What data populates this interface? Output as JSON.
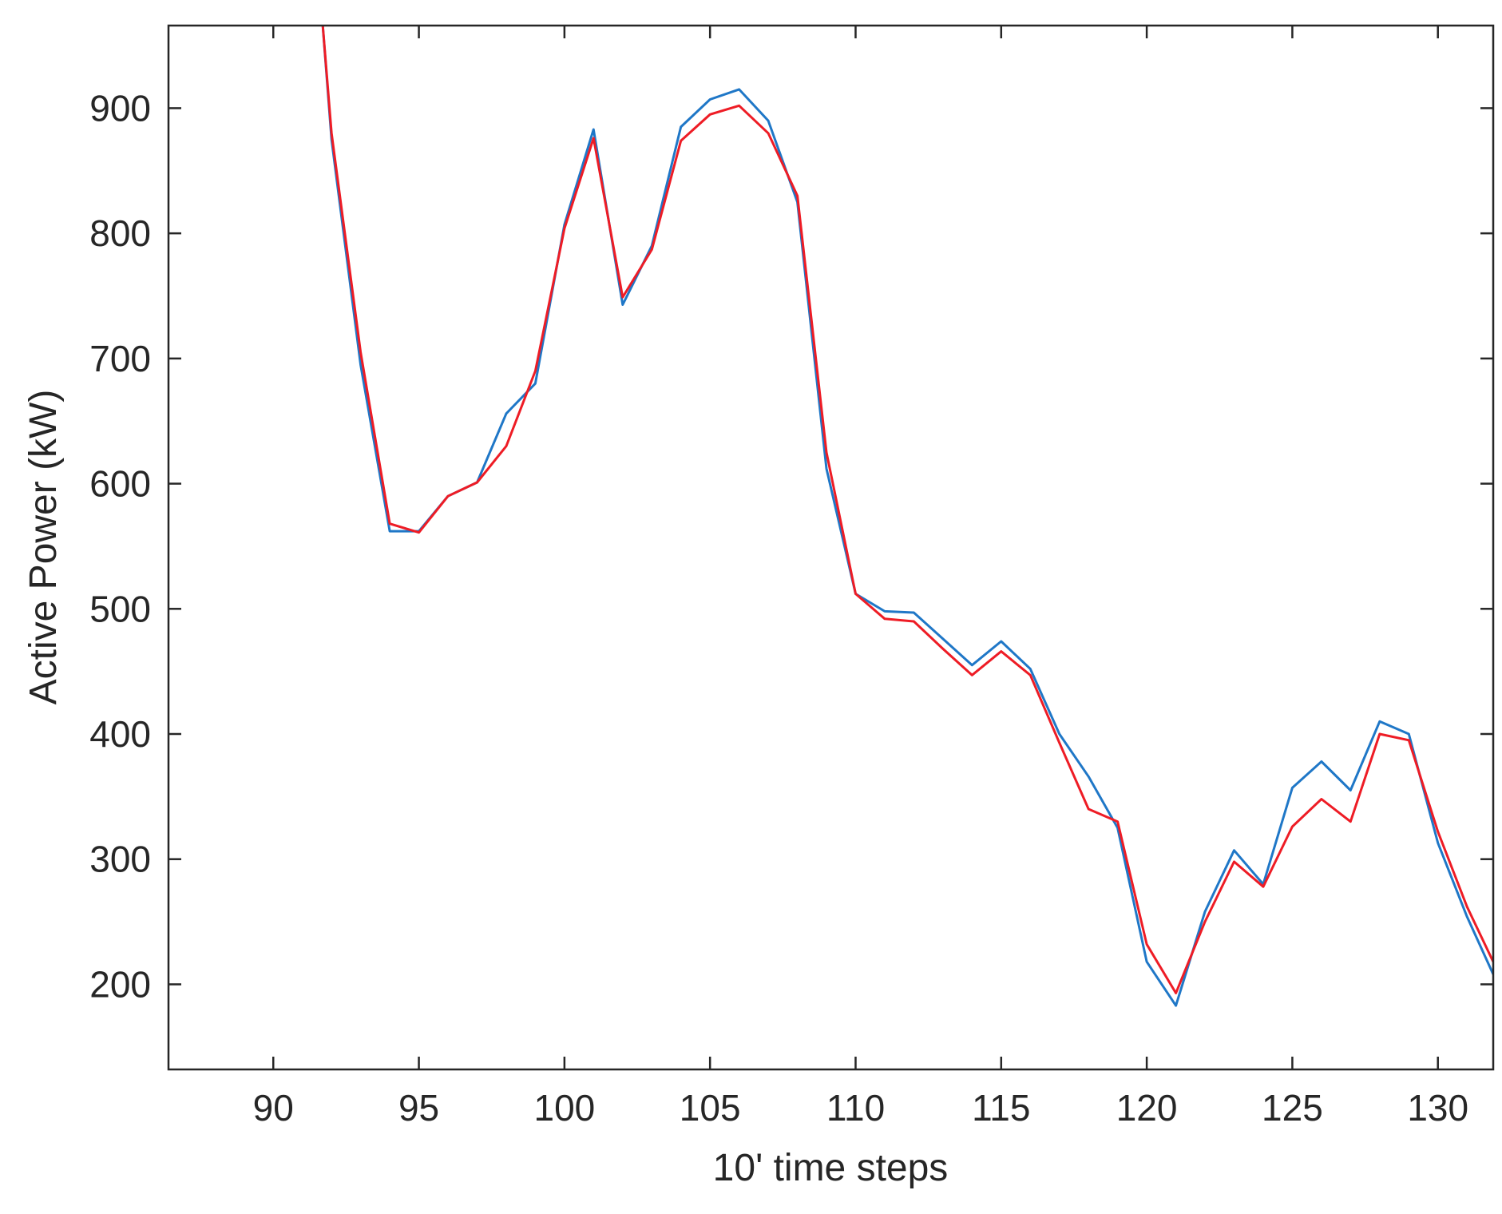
{
  "chart_data": {
    "type": "line",
    "xlabel": "10' time steps",
    "ylabel": "Active Power (kW)",
    "xlim": [
      86.4,
      131.9
    ],
    "ylim": [
      132,
      966
    ],
    "xticks": [
      90,
      95,
      100,
      105,
      110,
      115,
      120,
      125,
      130
    ],
    "yticks": [
      200,
      300,
      400,
      500,
      600,
      700,
      800,
      900
    ],
    "grid": false,
    "legend": null,
    "series": [
      {
        "color": "#1f77c7",
        "x": [
          91.7,
          92,
          93,
          94,
          95,
          96,
          97,
          98,
          99,
          100,
          101,
          102,
          103,
          104,
          105,
          106,
          107,
          108,
          109,
          110,
          111,
          112,
          113,
          114,
          115,
          116,
          117,
          118,
          119,
          120,
          121,
          122,
          123,
          124,
          125,
          126,
          127,
          128,
          129,
          130,
          131,
          131.9
        ],
        "y": [
          966,
          875,
          695,
          562,
          562,
          590,
          601,
          656,
          680,
          807,
          883,
          743,
          790,
          885,
          907,
          915,
          890,
          825,
          612,
          512,
          498,
          497,
          476,
          455,
          474,
          452,
          400,
          366,
          325,
          218,
          183,
          258,
          307,
          280,
          357,
          378,
          355,
          410,
          400,
          313,
          254,
          208
        ]
      },
      {
        "color": "#ee1c25",
        "x": [
          91.7,
          92,
          93,
          94,
          95,
          96,
          97,
          98,
          99,
          100,
          101,
          102,
          103,
          104,
          105,
          106,
          107,
          108,
          109,
          110,
          111,
          112,
          113,
          114,
          115,
          116,
          117,
          118,
          119,
          120,
          121,
          122,
          123,
          124,
          125,
          126,
          127,
          128,
          129,
          130,
          131,
          131.9
        ],
        "y": [
          966,
          880,
          705,
          568,
          561,
          590,
          601,
          630,
          690,
          804,
          876,
          749,
          787,
          874,
          895,
          902,
          880,
          830,
          625,
          512,
          492,
          490,
          468,
          447,
          466,
          447,
          393,
          340,
          330,
          232,
          193,
          250,
          298,
          278,
          326,
          348,
          330,
          400,
          395,
          322,
          262,
          218
        ]
      }
    ]
  }
}
